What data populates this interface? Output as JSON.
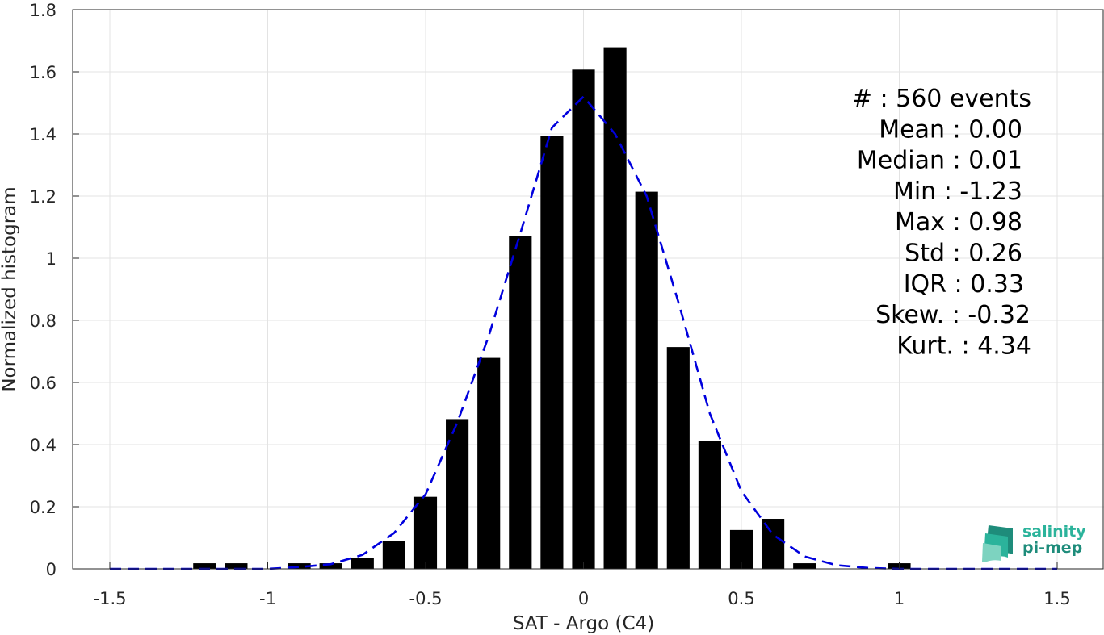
{
  "chart_data": {
    "type": "bar",
    "xlabel": "SAT - Argo (C4)",
    "ylabel": "Normalized histogram",
    "xlim": [
      -1.5,
      1.5
    ],
    "ylim": [
      0,
      1.8
    ],
    "grid": true,
    "x_ticks": [
      "-1.5",
      "-1",
      "-0.5",
      "0",
      "0.5",
      "1",
      "1.5"
    ],
    "y_ticks": [
      "0",
      "0.2",
      "0.4",
      "0.6",
      "0.8",
      "1",
      "1.2",
      "1.4",
      "1.6",
      "1.8"
    ],
    "bar_color": "#000000",
    "bin_width": 0.1,
    "bars": [
      {
        "x": -1.2,
        "value": 0.018
      },
      {
        "x": -1.1,
        "value": 0.018
      },
      {
        "x": -0.9,
        "value": 0.018
      },
      {
        "x": -0.8,
        "value": 0.018
      },
      {
        "x": -0.7,
        "value": 0.036
      },
      {
        "x": -0.6,
        "value": 0.089
      },
      {
        "x": -0.5,
        "value": 0.232
      },
      {
        "x": -0.4,
        "value": 0.482
      },
      {
        "x": -0.3,
        "value": 0.679
      },
      {
        "x": -0.2,
        "value": 1.071
      },
      {
        "x": -0.1,
        "value": 1.393
      },
      {
        "x": 0.0,
        "value": 1.607
      },
      {
        "x": 0.1,
        "value": 1.679
      },
      {
        "x": 0.2,
        "value": 1.214
      },
      {
        "x": 0.3,
        "value": 0.714
      },
      {
        "x": 0.4,
        "value": 0.411
      },
      {
        "x": 0.5,
        "value": 0.125
      },
      {
        "x": 0.6,
        "value": 0.161
      },
      {
        "x": 0.7,
        "value": 0.018
      },
      {
        "x": 1.0,
        "value": 0.018
      }
    ],
    "fit_curve": {
      "style": "dashed",
      "color": "#0000dd",
      "x": [
        -1.5,
        -1.4,
        -1.3,
        -1.2,
        -1.1,
        -1.0,
        -0.9,
        -0.8,
        -0.7,
        -0.6,
        -0.5,
        -0.4,
        -0.3,
        -0.2,
        -0.1,
        0.0,
        0.1,
        0.2,
        0.3,
        0.4,
        0.5,
        0.6,
        0.7,
        0.8,
        0.9,
        1.0,
        1.1,
        1.2,
        1.3,
        1.4,
        1.5
      ],
      "y": [
        0.0,
        0.0,
        0.0,
        0.0,
        0.0,
        0.0,
        0.006,
        0.015,
        0.045,
        0.115,
        0.24,
        0.47,
        0.75,
        1.08,
        1.42,
        1.52,
        1.4,
        1.2,
        0.86,
        0.5,
        0.25,
        0.11,
        0.04,
        0.012,
        0.003,
        0.0,
        0.0,
        0.0,
        0.0,
        0.0,
        0.0
      ]
    }
  },
  "stats": [
    {
      "label": "#  : 560 events"
    },
    {
      "label": "Mean : 0.00"
    },
    {
      "label": "Median : 0.01"
    },
    {
      "label": "Min : -1.23"
    },
    {
      "label": "Max : 0.98"
    },
    {
      "label": "Std : 0.26"
    },
    {
      "label": "IQR : 0.33"
    },
    {
      "label": "Skew. : -0.32"
    },
    {
      "label": "Kurt. : 4.34"
    }
  ],
  "logo": {
    "line1": "salinity",
    "line2": "pi-mep",
    "color1": "#2bb39b",
    "color2": "#1e8c7b"
  }
}
